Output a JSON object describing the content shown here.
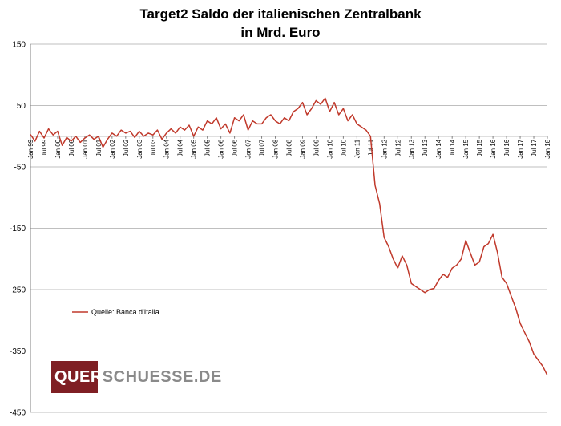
{
  "chart_data": {
    "type": "line",
    "title_line1": "Target2 Saldo der italienischen Zentralbank",
    "title_line2": "in Mrd. Euro",
    "ylim": [
      -450,
      150
    ],
    "yticks": [
      150,
      50,
      -50,
      -150,
      -250,
      -350,
      -450
    ],
    "xlim": [
      "1999-01",
      "2018-01"
    ],
    "xticks": [
      "Jan 99",
      "Jul 99",
      "Jan 00",
      "Jul 00",
      "Jan 01",
      "Jul 01",
      "Jan 02",
      "Jul 02",
      "Jan 03",
      "Jul 03",
      "Jan 04",
      "Jul 04",
      "Jan 05",
      "Jul 05",
      "Jan 06",
      "Jul 06",
      "Jan 07",
      "Jul 07",
      "Jan 08",
      "Jul 08",
      "Jan 09",
      "Jul 09",
      "Jan 10",
      "Jul 10",
      "Jan 11",
      "Jul 11",
      "Jan 12",
      "Jul 12",
      "Jan 13",
      "Jul 13",
      "Jan 14",
      "Jul 14",
      "Jan 15",
      "Jul 15",
      "Jan 16",
      "Jul 16",
      "Jan 17",
      "Jul 17",
      "Jan 18"
    ],
    "grid": true,
    "legend_position": "left-middle",
    "series": [
      {
        "name": "Quelle: Banca d'Italia",
        "color": "#c0392b",
        "points": [
          [
            "1999-01",
            3
          ],
          [
            "1999-03",
            -8
          ],
          [
            "1999-05",
            8
          ],
          [
            "1999-07",
            -3
          ],
          [
            "1999-09",
            12
          ],
          [
            "1999-11",
            2
          ],
          [
            "2000-01",
            8
          ],
          [
            "2000-03",
            -15
          ],
          [
            "2000-05",
            -2
          ],
          [
            "2000-07",
            -8
          ],
          [
            "2000-09",
            0
          ],
          [
            "2000-11",
            -10
          ],
          [
            "2001-01",
            -3
          ],
          [
            "2001-03",
            2
          ],
          [
            "2001-05",
            -5
          ],
          [
            "2001-07",
            0
          ],
          [
            "2001-09",
            -18
          ],
          [
            "2001-11",
            -5
          ],
          [
            "2002-01",
            5
          ],
          [
            "2002-03",
            0
          ],
          [
            "2002-05",
            10
          ],
          [
            "2002-07",
            5
          ],
          [
            "2002-09",
            8
          ],
          [
            "2002-11",
            -2
          ],
          [
            "2003-01",
            8
          ],
          [
            "2003-03",
            0
          ],
          [
            "2003-05",
            5
          ],
          [
            "2003-07",
            2
          ],
          [
            "2003-09",
            10
          ],
          [
            "2003-11",
            -5
          ],
          [
            "2004-01",
            5
          ],
          [
            "2004-03",
            12
          ],
          [
            "2004-05",
            5
          ],
          [
            "2004-07",
            15
          ],
          [
            "2004-09",
            10
          ],
          [
            "2004-11",
            18
          ],
          [
            "2005-01",
            0
          ],
          [
            "2005-03",
            15
          ],
          [
            "2005-05",
            10
          ],
          [
            "2005-07",
            25
          ],
          [
            "2005-09",
            20
          ],
          [
            "2005-11",
            30
          ],
          [
            "2006-01",
            12
          ],
          [
            "2006-03",
            20
          ],
          [
            "2006-05",
            5
          ],
          [
            "2006-07",
            30
          ],
          [
            "2006-09",
            25
          ],
          [
            "2006-11",
            35
          ],
          [
            "2007-01",
            10
          ],
          [
            "2007-03",
            25
          ],
          [
            "2007-05",
            20
          ],
          [
            "2007-07",
            20
          ],
          [
            "2007-09",
            30
          ],
          [
            "2007-11",
            35
          ],
          [
            "2008-01",
            25
          ],
          [
            "2008-03",
            20
          ],
          [
            "2008-05",
            30
          ],
          [
            "2008-07",
            25
          ],
          [
            "2008-09",
            40
          ],
          [
            "2008-11",
            45
          ],
          [
            "2009-01",
            55
          ],
          [
            "2009-03",
            35
          ],
          [
            "2009-05",
            45
          ],
          [
            "2009-07",
            58
          ],
          [
            "2009-09",
            52
          ],
          [
            "2009-11",
            62
          ],
          [
            "2010-01",
            40
          ],
          [
            "2010-03",
            55
          ],
          [
            "2010-05",
            35
          ],
          [
            "2010-07",
            45
          ],
          [
            "2010-09",
            25
          ],
          [
            "2010-11",
            35
          ],
          [
            "2011-01",
            20
          ],
          [
            "2011-03",
            15
          ],
          [
            "2011-05",
            10
          ],
          [
            "2011-07",
            0
          ],
          [
            "2011-09",
            -80
          ],
          [
            "2011-11",
            -110
          ],
          [
            "2012-01",
            -165
          ],
          [
            "2012-03",
            -180
          ],
          [
            "2012-05",
            -200
          ],
          [
            "2012-07",
            -215
          ],
          [
            "2012-09",
            -195
          ],
          [
            "2012-11",
            -210
          ],
          [
            "2013-01",
            -240
          ],
          [
            "2013-03",
            -245
          ],
          [
            "2013-05",
            -250
          ],
          [
            "2013-07",
            -255
          ],
          [
            "2013-09",
            -250
          ],
          [
            "2013-11",
            -248
          ],
          [
            "2014-01",
            -235
          ],
          [
            "2014-03",
            -225
          ],
          [
            "2014-05",
            -230
          ],
          [
            "2014-07",
            -215
          ],
          [
            "2014-09",
            -210
          ],
          [
            "2014-11",
            -200
          ],
          [
            "2015-01",
            -170
          ],
          [
            "2015-03",
            -190
          ],
          [
            "2015-05",
            -210
          ],
          [
            "2015-07",
            -205
          ],
          [
            "2015-09",
            -180
          ],
          [
            "2015-11",
            -175
          ],
          [
            "2016-01",
            -160
          ],
          [
            "2016-03",
            -190
          ],
          [
            "2016-05",
            -230
          ],
          [
            "2016-07",
            -240
          ],
          [
            "2016-09",
            -260
          ],
          [
            "2016-11",
            -280
          ],
          [
            "2017-01",
            -305
          ],
          [
            "2017-03",
            -320
          ],
          [
            "2017-05",
            -335
          ],
          [
            "2017-07",
            -355
          ],
          [
            "2017-09",
            -365
          ],
          [
            "2017-11",
            -375
          ],
          [
            "2018-01",
            -390
          ]
        ]
      }
    ]
  },
  "watermark": {
    "prefix": "QUER",
    "suffix": "SCHUESSE.DE"
  }
}
